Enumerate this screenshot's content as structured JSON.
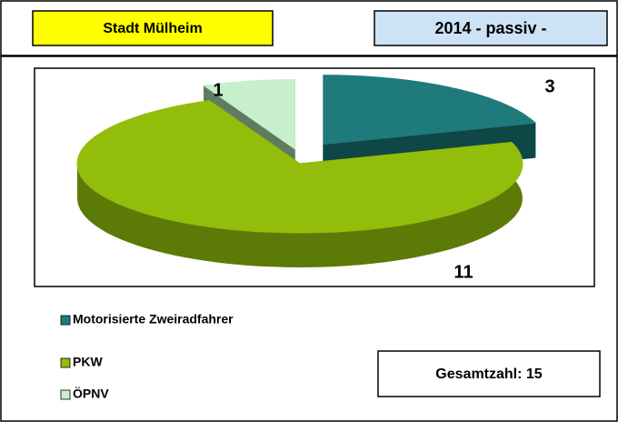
{
  "chart_data": {
    "type": "pie3d",
    "title": "Stadt Mülheim",
    "subtitle": "2014 - passiv -",
    "annotation": "Gesamtzahl: 15",
    "categories": [
      "Motorisierte Zweiradfahrer",
      "PKW",
      "ÖPNV"
    ],
    "values": [
      3,
      11,
      1
    ],
    "colors": [
      "#1f7b7b",
      "#93bd0b",
      "#c8efcb"
    ],
    "side_colors": [
      "#0f4646",
      "#5c7a06",
      "#5f7c63"
    ],
    "legend": "bottom-left"
  }
}
